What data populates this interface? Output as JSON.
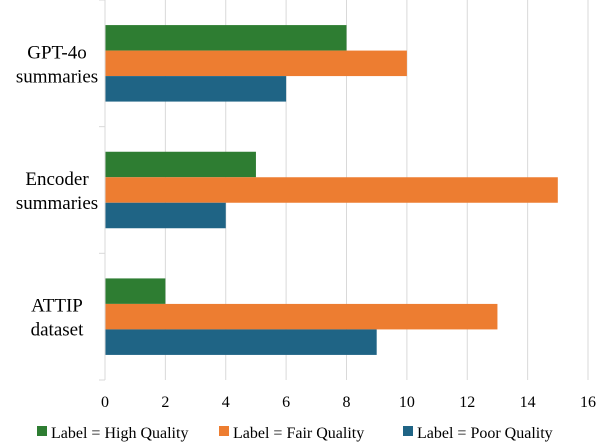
{
  "chart_data": {
    "type": "bar",
    "orientation": "horizontal",
    "categories": [
      [
        "GPT-4o",
        "summaries"
      ],
      [
        "Encoder",
        "summaries"
      ],
      [
        "ATTIP",
        "dataset"
      ]
    ],
    "series": [
      {
        "name": "Label = High Quality",
        "color": "#2e7d32",
        "values": [
          8,
          5,
          2
        ]
      },
      {
        "name": "Label = Fair Quality",
        "color": "#ed7d31",
        "values": [
          10,
          15,
          13
        ]
      },
      {
        "name": "Label = Poor Quality",
        "color": "#1f6485",
        "values": [
          6,
          4,
          9
        ]
      }
    ],
    "xlim": [
      0,
      16
    ],
    "xticks": [
      0,
      2,
      4,
      6,
      8,
      10,
      12,
      14,
      16
    ],
    "grid": "vertical",
    "legend_position": "bottom"
  }
}
